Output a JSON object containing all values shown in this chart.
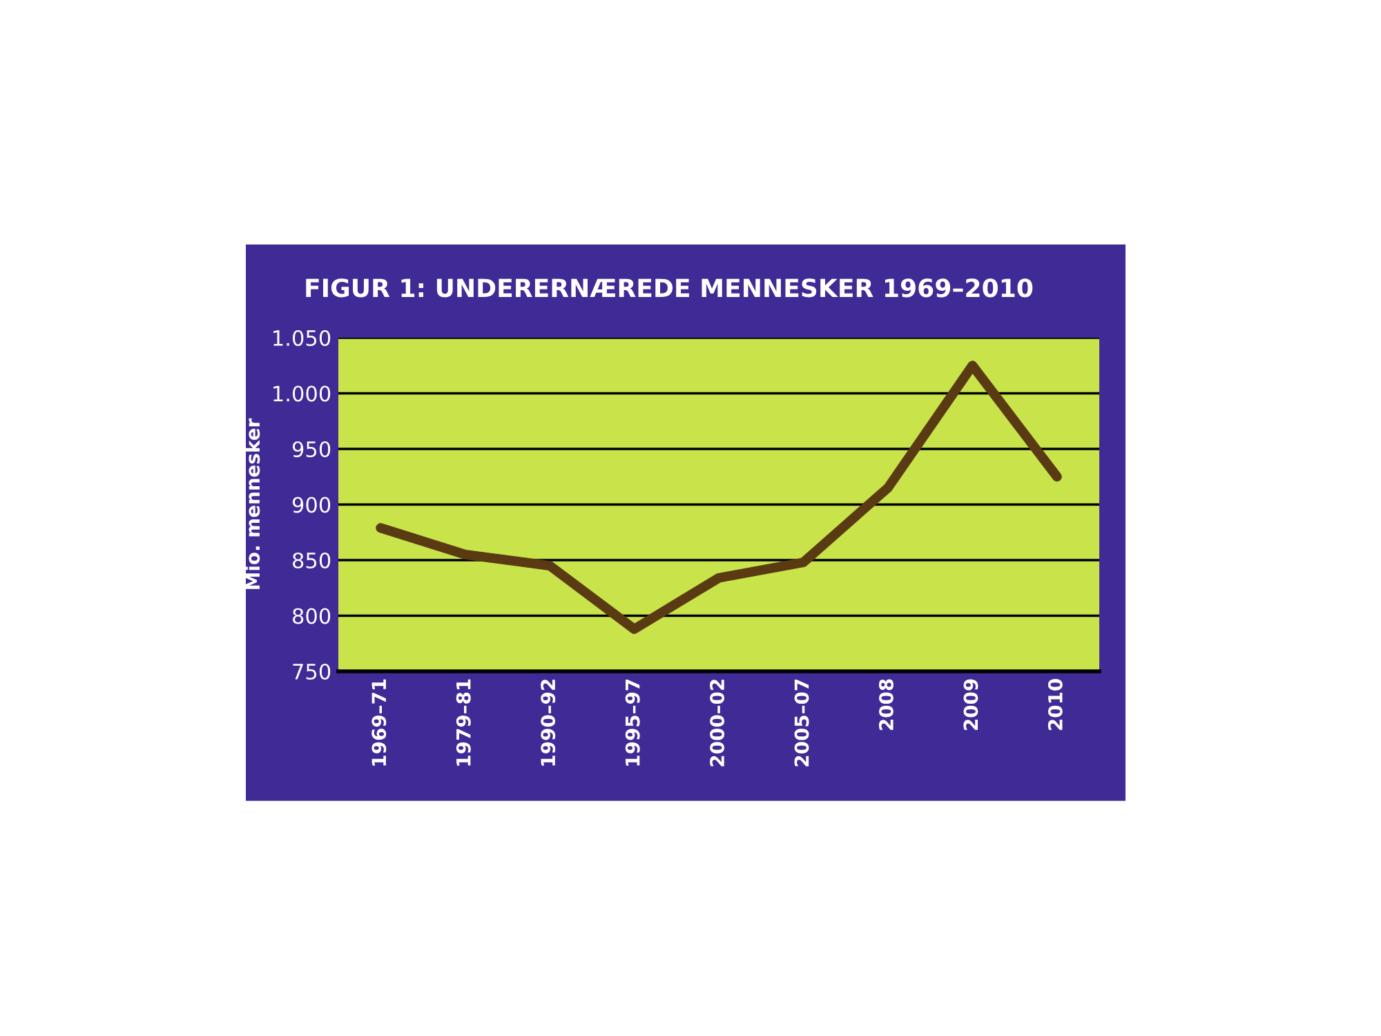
{
  "chart_data": {
    "type": "line",
    "title": "FIGUR 1: UNDERERNÆREDE MENNESKER 1969–2010",
    "ylabel": "Mio. mennesker",
    "categories": [
      "1969–71",
      "1979–81",
      "1990–92",
      "1995–97",
      "2000–02",
      "2005–07",
      "2008",
      "2009",
      "2010"
    ],
    "series": [
      {
        "color": "#5a3a12",
        "values": [
          879,
          855,
          845,
          788,
          834,
          848,
          915,
          1025,
          925
        ]
      }
    ],
    "ylim": [
      750,
      1050
    ],
    "yticks": [
      750,
      800,
      850,
      900,
      950,
      {
        "value": 1000,
        "label": "1.000"
      },
      {
        "value": 1050,
        "label": "1.050"
      }
    ],
    "grid": "y",
    "marker": "none",
    "line_style": "solid",
    "legend": false
  }
}
